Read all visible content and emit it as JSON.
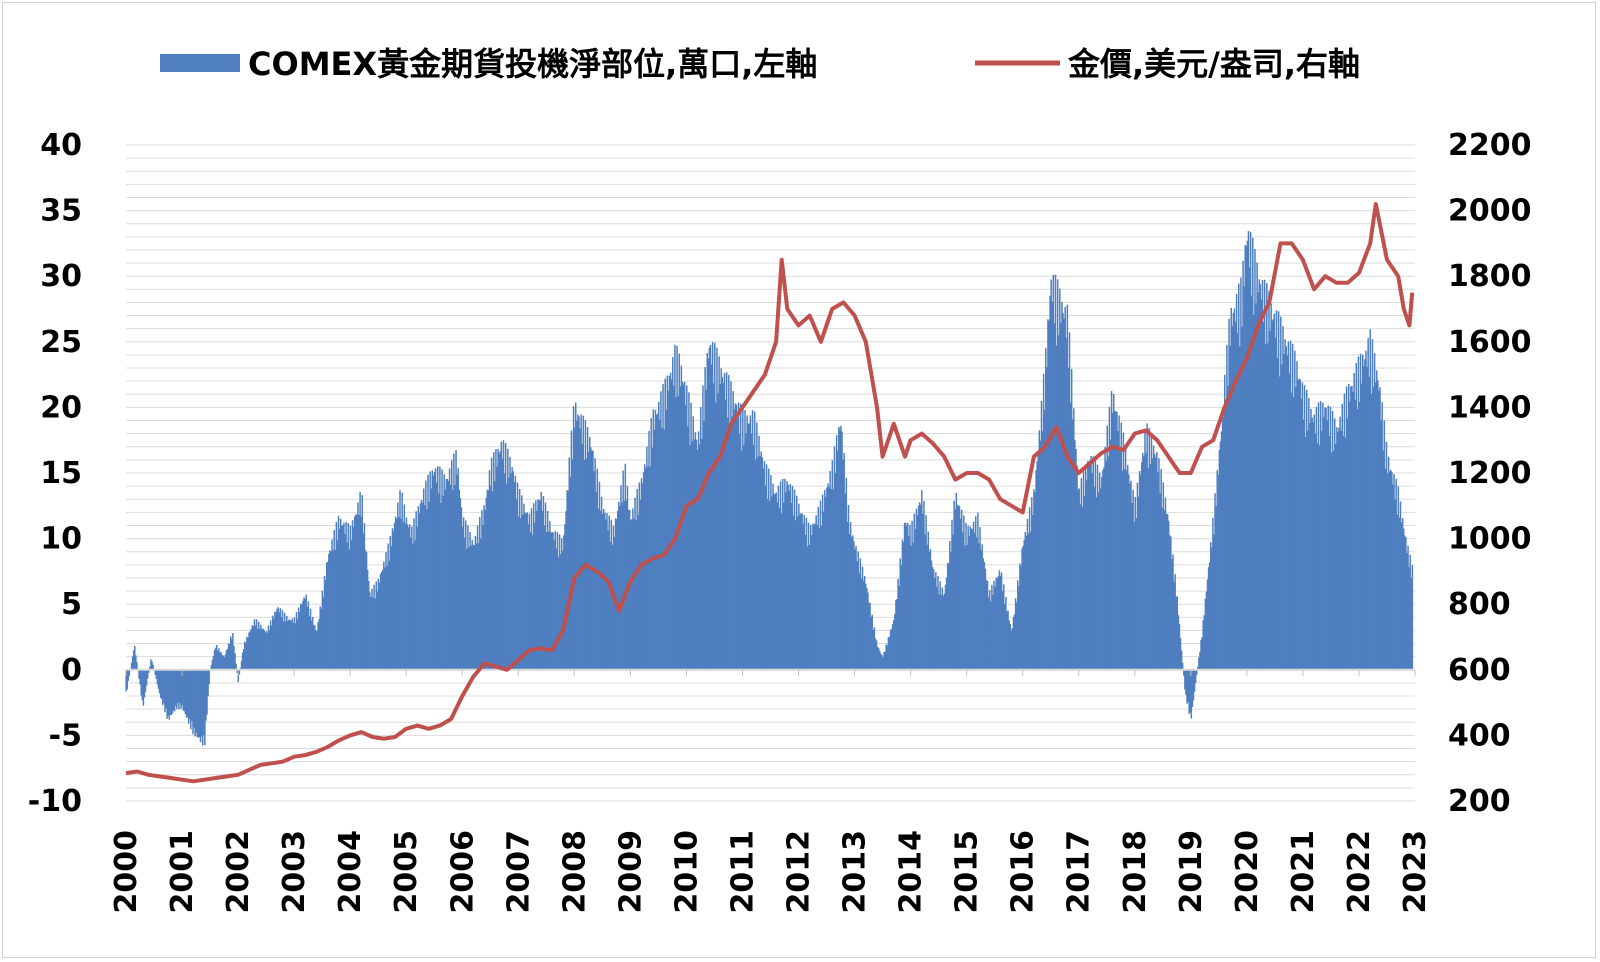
{
  "chart_data": {
    "type": "bar+line",
    "title": "",
    "legend": [
      {
        "key": "positions",
        "label": "COMEX黃金期貨投機淨部位,萬口,左軸",
        "color": "#4f7fc0",
        "marker": "bar"
      },
      {
        "key": "gold",
        "label": "金價,美元/盎司,右軸",
        "color": "#c0504d",
        "marker": "line"
      }
    ],
    "legend_position": "top",
    "x_axis": {
      "ticks": [
        "2000",
        "2001",
        "2002",
        "2003",
        "2004",
        "2005",
        "2006",
        "2007",
        "2008",
        "2009",
        "2010",
        "2011",
        "2012",
        "2013",
        "2014",
        "2015",
        "2016",
        "2017",
        "2018",
        "2019",
        "2020",
        "2021",
        "2022",
        "2023"
      ],
      "range": [
        2000,
        2023
      ]
    },
    "y_left": {
      "range": [
        -10,
        40
      ],
      "ticks": [
        "-10",
        "-5",
        "0",
        "5",
        "10",
        "15",
        "20",
        "25",
        "30",
        "35",
        "40"
      ],
      "negative_tick_color": "#ff0000"
    },
    "y_right": {
      "range": [
        200,
        2200
      ],
      "ticks": [
        "200",
        "400",
        "600",
        "800",
        "1000",
        "1200",
        "1400",
        "1600",
        "1800",
        "2000",
        "2200"
      ]
    },
    "grid": "horizontal-minor",
    "series": [
      {
        "name": "COMEX黃金期貨投機淨部位,萬口,左軸",
        "type": "bar",
        "axis": "left",
        "x": [
          2000.0,
          2000.15,
          2000.3,
          2000.45,
          2000.6,
          2000.75,
          2000.9,
          2001.0,
          2001.2,
          2001.4,
          2001.5,
          2001.6,
          2001.75,
          2001.9,
          2002.0,
          2002.1,
          2002.3,
          2002.5,
          2002.7,
          2002.9,
          2003.0,
          2003.2,
          2003.4,
          2003.6,
          2003.8,
          2004.0,
          2004.2,
          2004.35,
          2004.5,
          2004.7,
          2004.9,
          2005.0,
          2005.1,
          2005.3,
          2005.5,
          2005.7,
          2005.9,
          2006.0,
          2006.2,
          2006.4,
          2006.5,
          2006.7,
          2006.9,
          2007.0,
          2007.2,
          2007.4,
          2007.6,
          2007.8,
          2007.9,
          2008.0,
          2008.1,
          2008.3,
          2008.5,
          2008.7,
          2008.9,
          2009.0,
          2009.2,
          2009.4,
          2009.6,
          2009.8,
          2009.9,
          2010.0,
          2010.2,
          2010.4,
          2010.6,
          2010.8,
          2011.0,
          2011.2,
          2011.4,
          2011.6,
          2011.8,
          2012.0,
          2012.2,
          2012.4,
          2012.6,
          2012.75,
          2012.9,
          2013.0,
          2013.2,
          2013.4,
          2013.5,
          2013.7,
          2013.9,
          2014.0,
          2014.2,
          2014.4,
          2014.6,
          2014.8,
          2015.0,
          2015.2,
          2015.4,
          2015.6,
          2015.8,
          2016.0,
          2016.2,
          2016.4,
          2016.5,
          2016.6,
          2016.8,
          2017.0,
          2017.2,
          2017.4,
          2017.6,
          2017.8,
          2018.0,
          2018.2,
          2018.4,
          2018.6,
          2018.75,
          2018.9,
          2019.0,
          2019.2,
          2019.4,
          2019.5,
          2019.7,
          2019.9,
          2020.0,
          2020.15,
          2020.3,
          2020.5,
          2020.7,
          2020.9,
          2021.0,
          2021.2,
          2021.4,
          2021.6,
          2021.8,
          2022.0,
          2022.2,
          2022.35,
          2022.5,
          2022.7,
          2022.85,
          2022.95
        ],
        "values": [
          -2,
          2,
          -3,
          1,
          -2,
          -4,
          -3,
          -3,
          -5,
          -6,
          0,
          2,
          1,
          3,
          -1,
          2,
          4,
          3,
          5,
          4,
          4,
          6,
          3,
          9,
          12,
          11,
          14,
          6,
          7,
          10,
          14,
          12,
          11,
          14,
          16,
          15,
          17,
          12,
          10,
          13,
          16,
          18,
          16,
          14,
          12,
          14,
          11,
          10,
          16,
          21,
          20,
          18,
          13,
          11,
          16,
          12,
          15,
          20,
          22,
          25,
          24,
          22,
          18,
          26,
          24,
          22,
          20,
          20,
          16,
          14,
          15,
          13,
          11,
          13,
          16,
          20,
          12,
          10,
          7,
          2,
          1,
          4,
          12,
          11,
          14,
          8,
          6,
          14,
          11,
          12,
          6,
          8,
          3,
          10,
          14,
          24,
          31,
          30,
          28,
          14,
          17,
          15,
          22,
          18,
          13,
          19,
          17,
          12,
          6,
          -2,
          -4,
          3,
          12,
          17,
          28,
          30,
          35,
          32,
          30,
          28,
          26,
          24,
          22,
          20,
          21,
          19,
          22,
          24,
          26,
          23,
          17,
          14,
          10,
          8
        ]
      },
      {
        "name": "金價,美元/盎司,右軸",
        "type": "line",
        "axis": "right",
        "x": [
          2000.0,
          2000.2,
          2000.4,
          2000.6,
          2000.8,
          2001.0,
          2001.2,
          2001.4,
          2001.6,
          2001.8,
          2002.0,
          2002.2,
          2002.4,
          2002.6,
          2002.8,
          2003.0,
          2003.2,
          2003.4,
          2003.6,
          2003.8,
          2004.0,
          2004.2,
          2004.4,
          2004.6,
          2004.8,
          2005.0,
          2005.2,
          2005.4,
          2005.6,
          2005.8,
          2006.0,
          2006.2,
          2006.4,
          2006.6,
          2006.8,
          2007.0,
          2007.2,
          2007.4,
          2007.6,
          2007.8,
          2008.0,
          2008.2,
          2008.4,
          2008.6,
          2008.8,
          2009.0,
          2009.2,
          2009.4,
          2009.6,
          2009.8,
          2010.0,
          2010.2,
          2010.4,
          2010.6,
          2010.8,
          2011.0,
          2011.2,
          2011.4,
          2011.6,
          2011.7,
          2011.8,
          2012.0,
          2012.2,
          2012.4,
          2012.6,
          2012.8,
          2013.0,
          2013.2,
          2013.4,
          2013.5,
          2013.7,
          2013.9,
          2014.0,
          2014.2,
          2014.4,
          2014.6,
          2014.8,
          2015.0,
          2015.2,
          2015.4,
          2015.6,
          2015.8,
          2016.0,
          2016.2,
          2016.4,
          2016.6,
          2016.8,
          2017.0,
          2017.2,
          2017.4,
          2017.6,
          2017.8,
          2018.0,
          2018.2,
          2018.4,
          2018.6,
          2018.8,
          2019.0,
          2019.2,
          2019.4,
          2019.6,
          2019.8,
          2020.0,
          2020.2,
          2020.4,
          2020.6,
          2020.8,
          2021.0,
          2021.2,
          2021.4,
          2021.6,
          2021.8,
          2022.0,
          2022.2,
          2022.3,
          2022.5,
          2022.7,
          2022.8,
          2022.9,
          2022.95
        ],
        "values": [
          285,
          290,
          280,
          275,
          270,
          265,
          260,
          265,
          270,
          275,
          280,
          295,
          310,
          315,
          320,
          335,
          340,
          350,
          365,
          385,
          400,
          410,
          395,
          390,
          395,
          420,
          430,
          420,
          430,
          450,
          520,
          580,
          620,
          610,
          600,
          630,
          660,
          665,
          660,
          720,
          880,
          920,
          900,
          870,
          780,
          870,
          920,
          940,
          950,
          1000,
          1100,
          1120,
          1200,
          1250,
          1350,
          1400,
          1450,
          1500,
          1600,
          1850,
          1700,
          1650,
          1680,
          1600,
          1700,
          1720,
          1680,
          1600,
          1400,
          1250,
          1350,
          1250,
          1300,
          1320,
          1290,
          1250,
          1180,
          1200,
          1200,
          1180,
          1120,
          1100,
          1080,
          1250,
          1280,
          1340,
          1250,
          1200,
          1230,
          1260,
          1280,
          1270,
          1320,
          1330,
          1300,
          1250,
          1200,
          1200,
          1280,
          1300,
          1400,
          1480,
          1550,
          1650,
          1720,
          1900,
          1900,
          1850,
          1760,
          1800,
          1780,
          1780,
          1810,
          1900,
          2020,
          1850,
          1800,
          1700,
          1650,
          1750
        ]
      }
    ]
  }
}
